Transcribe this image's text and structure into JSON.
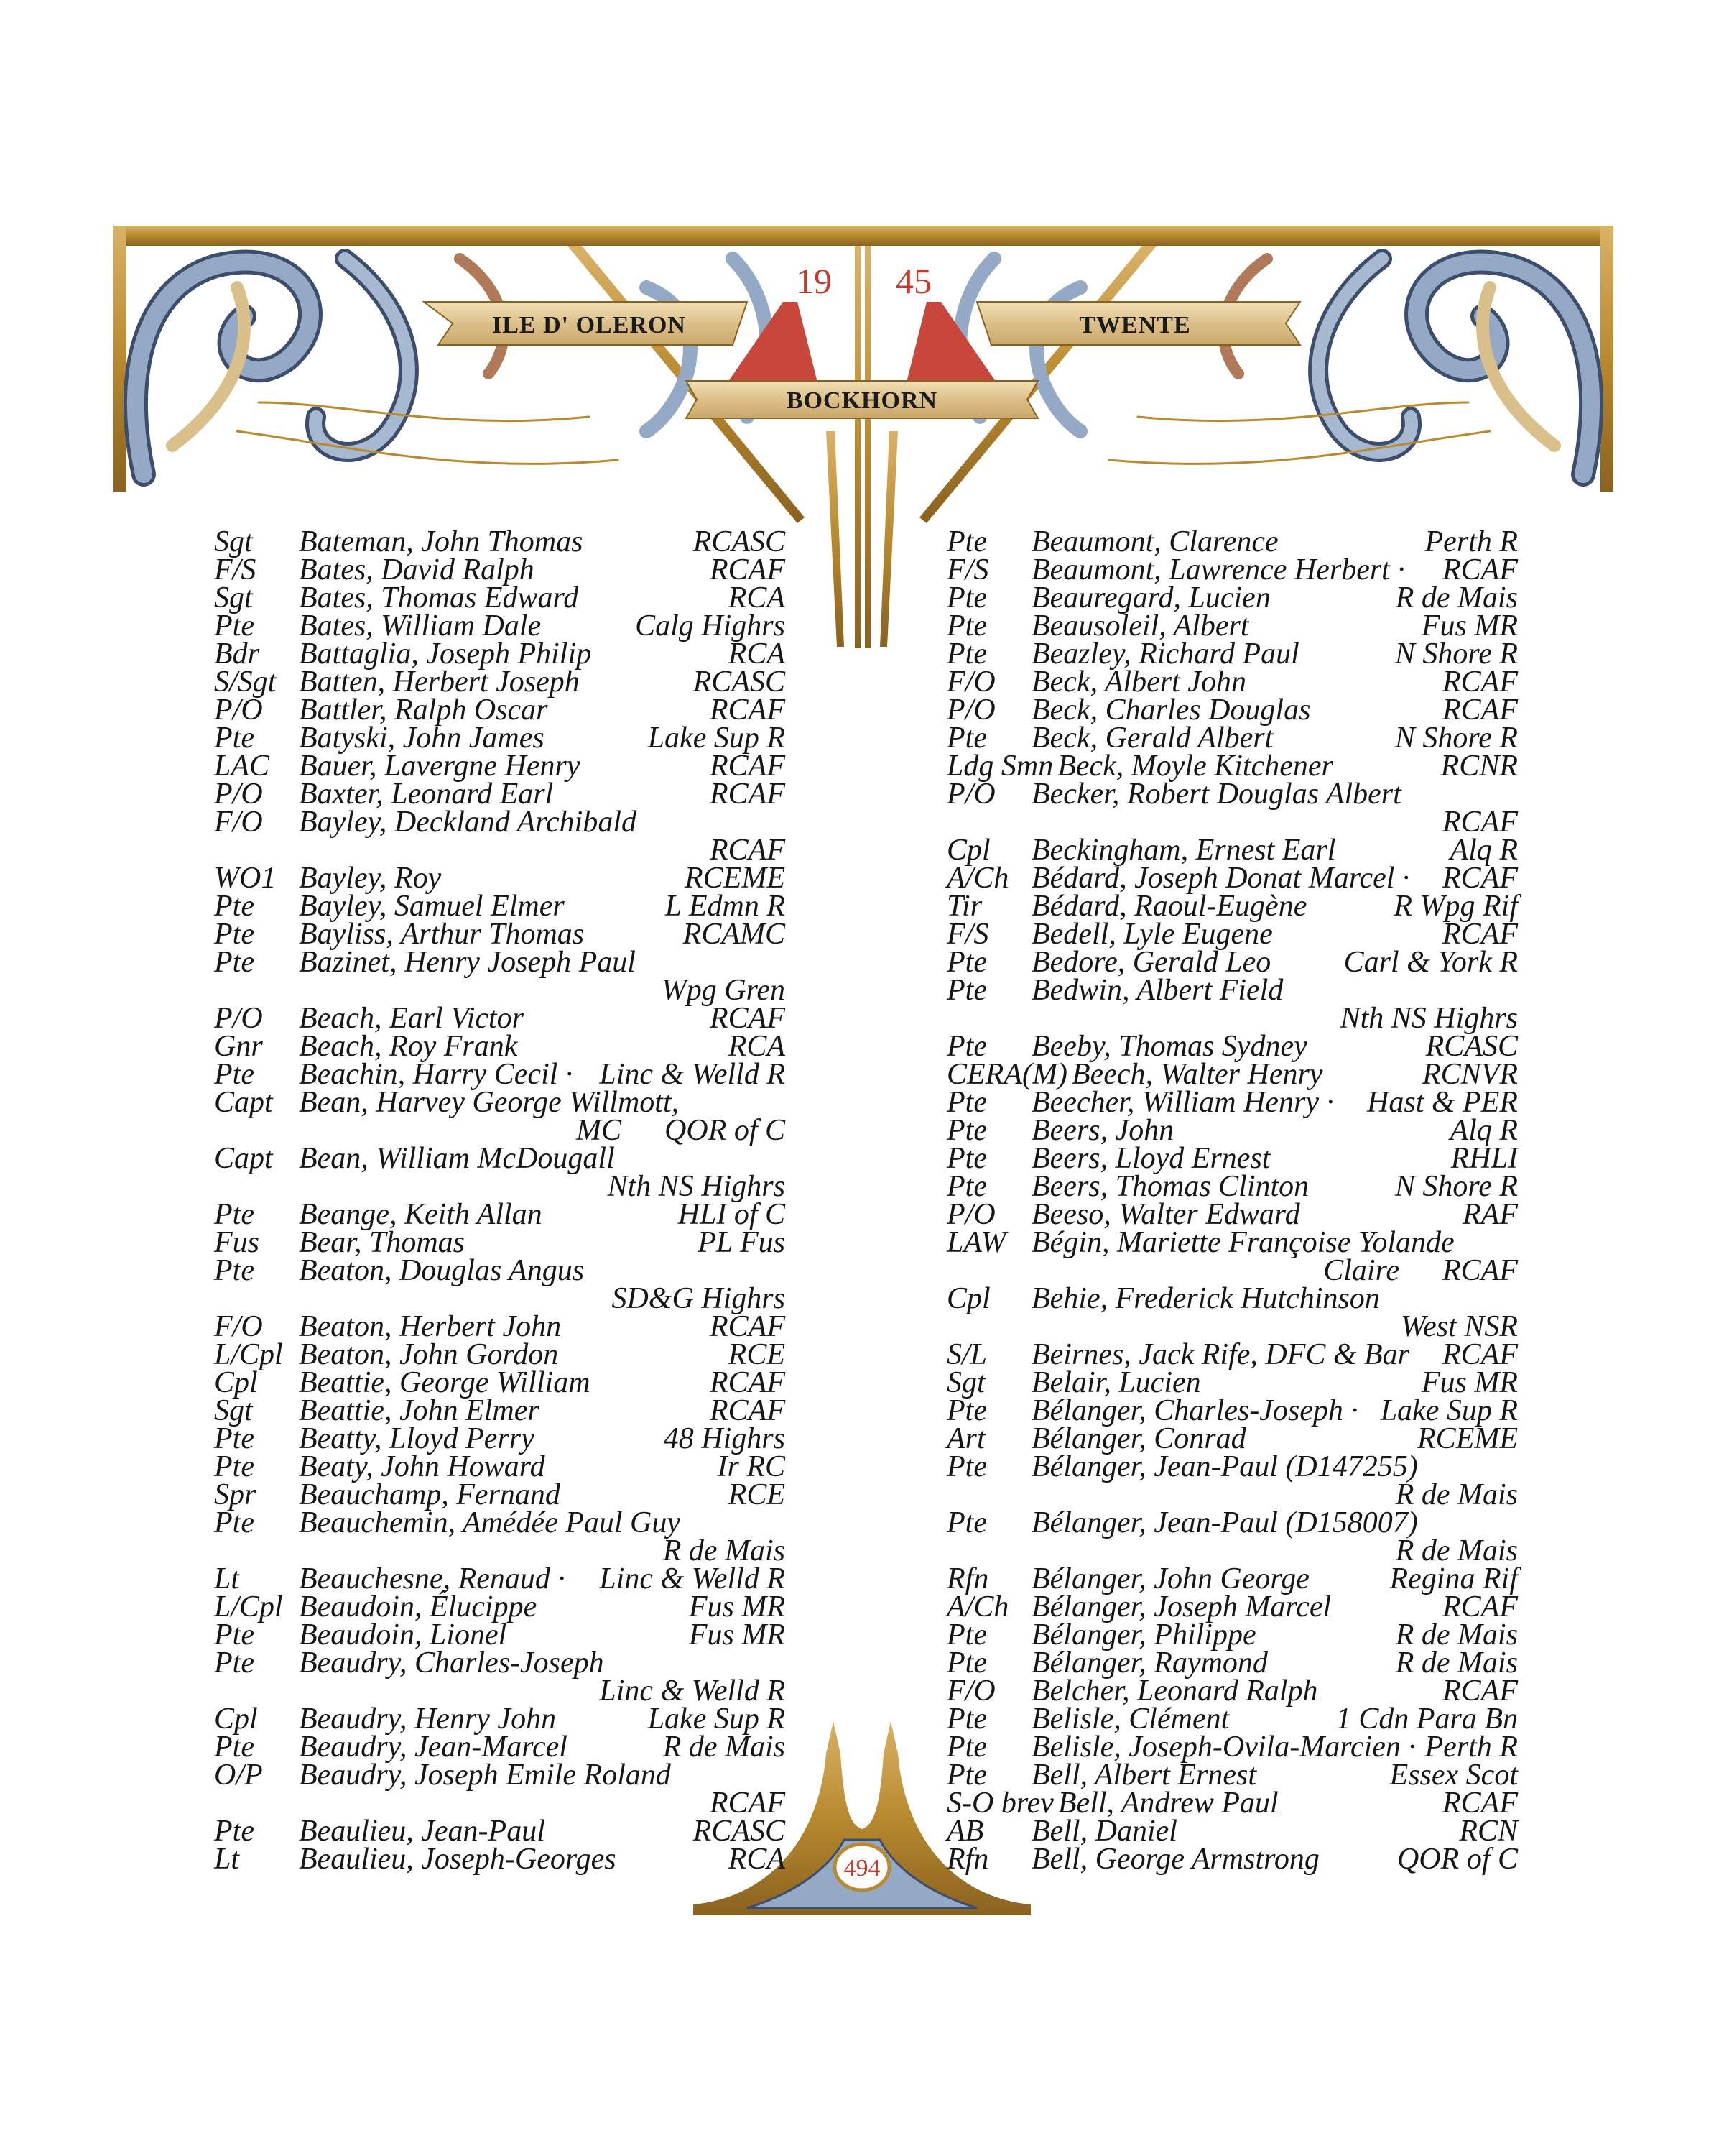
{
  "header": {
    "year_left": "19",
    "year_right": "45",
    "banner_left": "ILE D' OLERON",
    "banner_right": "TWENTE",
    "banner_center": "BOCKHORN"
  },
  "page_number": "494",
  "colors": {
    "gold": "#b8892e",
    "scroll_blue": "#93a9c6",
    "red": "#c43b2c",
    "ink": "#161616"
  },
  "left_column": [
    {
      "rank": "Sgt",
      "name": "Bateman, John Thomas",
      "unit": "RCASC"
    },
    {
      "rank": "F/S",
      "name": "Bates, David Ralph",
      "unit": "RCAF"
    },
    {
      "rank": "Sgt",
      "name": "Bates, Thomas Edward",
      "unit": "RCA"
    },
    {
      "rank": "Pte",
      "name": "Bates, William Dale",
      "unit": "Calg Highrs"
    },
    {
      "rank": "Bdr",
      "name": "Battaglia, Joseph Philip",
      "unit": "RCA"
    },
    {
      "rank": "S/Sgt",
      "name": "Batten, Herbert Joseph",
      "unit": "RCASC"
    },
    {
      "rank": "P/O",
      "name": "Battler, Ralph Oscar",
      "unit": "RCAF"
    },
    {
      "rank": "Pte",
      "name": "Batyski, John James",
      "unit": "Lake Sup R"
    },
    {
      "rank": "LAC",
      "name": "Bauer, Lavergne Henry",
      "unit": "RCAF"
    },
    {
      "rank": "P/O",
      "name": "Baxter, Leonard Earl",
      "unit": "RCAF"
    },
    {
      "rank": "F/O",
      "name": "Bayley, Deckland Archibald",
      "unit_below": "RCAF"
    },
    {
      "rank": "WO1",
      "name": "Bayley, Roy",
      "unit": "RCEME"
    },
    {
      "rank": "Pte",
      "name": "Bayley, Samuel Elmer",
      "unit": "L Edmn R"
    },
    {
      "rank": "Pte",
      "name": "Bayliss, Arthur Thomas",
      "unit": "RCAMC"
    },
    {
      "rank": "Pte",
      "name": "Bazinet, Henry Joseph Paul",
      "unit_below": "Wpg Gren"
    },
    {
      "rank": "P/O",
      "name": "Beach, Earl Victor",
      "unit": "RCAF"
    },
    {
      "rank": "Gnr",
      "name": "Beach, Roy Frank",
      "unit": "RCA"
    },
    {
      "rank": "Pte",
      "name": "Beachin, Harry Cecil ·",
      "unit": "Linc & Welld R"
    },
    {
      "rank": "Capt",
      "name": "Bean, Harvey George Willmott,",
      "cont": "MC",
      "unit_below": "QOR of C"
    },
    {
      "rank": "Capt",
      "name": "Bean, William McDougall",
      "unit_below": "Nth NS Highrs"
    },
    {
      "rank": "Pte",
      "name": "Beange, Keith Allan",
      "unit": "HLI of C"
    },
    {
      "rank": "Fus",
      "name": "Bear, Thomas",
      "unit": "PL Fus"
    },
    {
      "rank": "Pte",
      "name": "Beaton, Douglas Angus",
      "unit_below": "SD&G Highrs"
    },
    {
      "rank": "F/O",
      "name": "Beaton, Herbert John",
      "unit": "RCAF"
    },
    {
      "rank": "L/Cpl",
      "name": "Beaton, John Gordon",
      "unit": "RCE"
    },
    {
      "rank": "Cpl",
      "name": "Beattie, George William",
      "unit": "RCAF"
    },
    {
      "rank": "Sgt",
      "name": "Beattie, John Elmer",
      "unit": "RCAF"
    },
    {
      "rank": "Pte",
      "name": "Beatty, Lloyd Perry",
      "unit": "48 Highrs"
    },
    {
      "rank": "Pte",
      "name": "Beaty, John Howard",
      "unit": "Ir RC"
    },
    {
      "rank": "Spr",
      "name": "Beauchamp, Fernand",
      "unit": "RCE"
    },
    {
      "rank": "Pte",
      "name": "Beauchemin, Amédée Paul Guy",
      "unit_below": "R de Mais"
    },
    {
      "rank": "Lt",
      "name": "Beauchesne, Renaud ·",
      "unit": "Linc & Welld R"
    },
    {
      "rank": "L/Cpl",
      "name": "Beaudoin, Élucippe",
      "unit": "Fus MR"
    },
    {
      "rank": "Pte",
      "name": "Beaudoin, Lionel",
      "unit": "Fus MR"
    },
    {
      "rank": "Pte",
      "name": "Beaudry, Charles-Joseph",
      "unit_below": "Linc & Welld R"
    },
    {
      "rank": "Cpl",
      "name": "Beaudry, Henry John",
      "unit": "Lake Sup R"
    },
    {
      "rank": "Pte",
      "name": "Beaudry, Jean-Marcel",
      "unit": "R de Mais"
    },
    {
      "rank": "O/P",
      "name": "Beaudry, Joseph Emile Roland",
      "unit_below": "RCAF"
    },
    {
      "rank": "Pte",
      "name": "Beaulieu, Jean-Paul",
      "unit": "RCASC"
    },
    {
      "rank": "Lt",
      "name": "Beaulieu, Joseph-Georges",
      "unit": "RCA"
    }
  ],
  "right_column": [
    {
      "rank": "Pte",
      "name": "Beaumont, Clarence",
      "unit": "Perth R"
    },
    {
      "rank": "F/S",
      "name": "Beaumont, Lawrence Herbert ·",
      "unit": "RCAF"
    },
    {
      "rank": "Pte",
      "name": "Beauregard, Lucien",
      "unit": "R de Mais"
    },
    {
      "rank": "Pte",
      "name": "Beausoleil, Albert",
      "unit": "Fus MR"
    },
    {
      "rank": "Pte",
      "name": "Beazley, Richard Paul",
      "unit": "N Shore R"
    },
    {
      "rank": "F/O",
      "name": "Beck, Albert John",
      "unit": "RCAF"
    },
    {
      "rank": "P/O",
      "name": "Beck, Charles Douglas",
      "unit": "RCAF"
    },
    {
      "rank": "Pte",
      "name": "Beck, Gerald Albert",
      "unit": "N Shore R"
    },
    {
      "rank": "Ldg Smn",
      "name": "Beck, Moyle Kitchener",
      "unit": "RCNR"
    },
    {
      "rank": "P/O",
      "name": "Becker, Robert Douglas Albert",
      "unit_below": "RCAF"
    },
    {
      "rank": "Cpl",
      "name": "Beckingham, Ernest Earl",
      "unit": "Alq R"
    },
    {
      "rank": "A/Ch",
      "name": "Bédard, Joseph Donat Marcel ·",
      "unit": "RCAF"
    },
    {
      "rank": "Tir",
      "name": "Bédard, Raoul-Eugène",
      "unit": "R Wpg Rif"
    },
    {
      "rank": "F/S",
      "name": "Bedell, Lyle Eugene",
      "unit": "RCAF"
    },
    {
      "rank": "Pte",
      "name": "Bedore, Gerald Leo",
      "unit": "Carl & York R"
    },
    {
      "rank": "Pte",
      "name": "Bedwin, Albert Field",
      "unit_below": "Nth NS Highrs"
    },
    {
      "rank": "Pte",
      "name": "Beeby, Thomas Sydney",
      "unit": "RCASC"
    },
    {
      "rank": "CERA(M)",
      "name": "Beech, Walter Henry",
      "unit": "RCNVR"
    },
    {
      "rank": "Pte",
      "name": "Beecher, William Henry ·",
      "unit": "Hast & PER"
    },
    {
      "rank": "Pte",
      "name": "Beers, John",
      "unit": "Alq R"
    },
    {
      "rank": "Pte",
      "name": "Beers, Lloyd Ernest",
      "unit": "RHLI"
    },
    {
      "rank": "Pte",
      "name": "Beers, Thomas Clinton",
      "unit": "N Shore R"
    },
    {
      "rank": "P/O",
      "name": "Beeso, Walter Edward",
      "unit": "RAF"
    },
    {
      "rank": "LAW",
      "name": "Bégin, Mariette Françoise Yolande",
      "cont": "Claire",
      "unit_below": "RCAF"
    },
    {
      "rank": "Cpl",
      "name": "Behie, Frederick Hutchinson",
      "unit_below": "West NSR"
    },
    {
      "rank": "S/L",
      "name": "Beirnes, Jack Rife, DFC & Bar",
      "unit": "RCAF"
    },
    {
      "rank": "Sgt",
      "name": "Belair, Lucien",
      "unit": "Fus MR"
    },
    {
      "rank": "Pte",
      "name": "Bélanger, Charles-Joseph ·",
      "unit": "Lake Sup R"
    },
    {
      "rank": "Art",
      "name": "Bélanger, Conrad",
      "unit": "RCEME"
    },
    {
      "rank": "Pte",
      "name": "Bélanger, Jean-Paul (D147255)",
      "unit_below": "R de Mais"
    },
    {
      "rank": "Pte",
      "name": "Bélanger, Jean-Paul (D158007)",
      "unit_below": "R de Mais"
    },
    {
      "rank": "Rfn",
      "name": "Bélanger, John George",
      "unit": "Regina Rif"
    },
    {
      "rank": "A/Ch",
      "name": "Bélanger, Joseph Marcel",
      "unit": "RCAF"
    },
    {
      "rank": "Pte",
      "name": "Bélanger, Philippe",
      "unit": "R de Mais"
    },
    {
      "rank": "Pte",
      "name": "Bélanger, Raymond",
      "unit": "R de Mais"
    },
    {
      "rank": "F/O",
      "name": "Belcher, Leonard Ralph",
      "unit": "RCAF"
    },
    {
      "rank": "Pte",
      "name": "Belisle, Clément",
      "unit": "1 Cdn Para Bn"
    },
    {
      "rank": "Pte",
      "name": "Belisle, Joseph-Ovila-Marcien ·",
      "unit": "Perth R"
    },
    {
      "rank": "Pte",
      "name": "Bell, Albert Ernest",
      "unit": "Essex Scot"
    },
    {
      "rank": "S-O brev",
      "name": "Bell, Andrew Paul",
      "unit": "RCAF"
    },
    {
      "rank": "AB",
      "name": "Bell, Daniel",
      "unit": "RCN"
    },
    {
      "rank": "Rfn",
      "name": "Bell, George Armstrong",
      "unit": "QOR of C"
    }
  ]
}
